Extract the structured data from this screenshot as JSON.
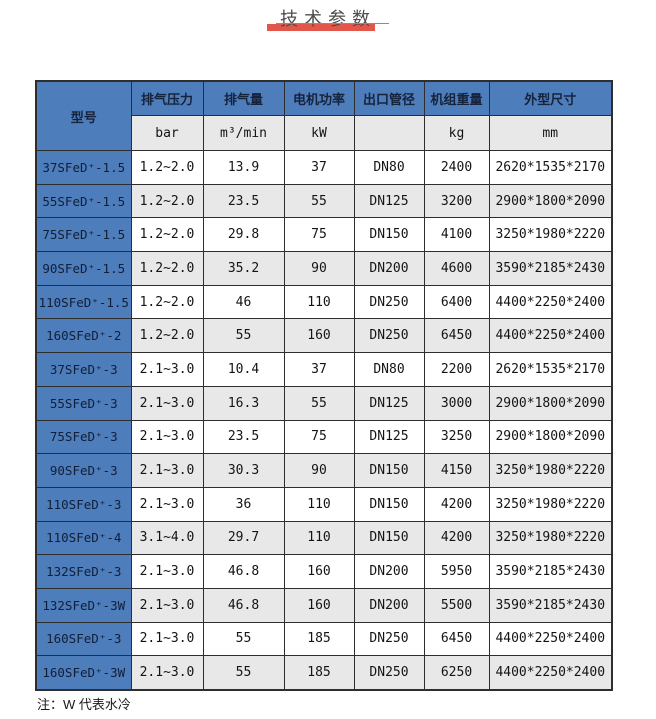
{
  "page": {
    "title": "技术参数",
    "note": "注：W 代表水冷"
  },
  "colors": {
    "header_blue": "#4e7dbb",
    "stripe_gray": "#e8e8e8",
    "title_red": "#e25749",
    "border": "#2e2e2e"
  },
  "table": {
    "columns": [
      {
        "key": "model",
        "label": "型号",
        "unit": ""
      },
      {
        "key": "exhaust-pressure",
        "label": "排气压力",
        "unit": "bar"
      },
      {
        "key": "exhaust-volume",
        "label": "排气量",
        "unit": "m³/min"
      },
      {
        "key": "motor-power",
        "label": "电机功率",
        "unit": "kW"
      },
      {
        "key": "outlet-diameter",
        "label": "出口管径",
        "unit": ""
      },
      {
        "key": "unit-weight",
        "label": "机组重量",
        "unit": "kg"
      },
      {
        "key": "dimensions",
        "label": "外型尺寸",
        "unit": "mm"
      }
    ],
    "rows": [
      [
        "37SFeD⁺-1.5",
        "1.2~2.0",
        "13.9",
        "37",
        "DN80",
        "2400",
        "2620*1535*2170"
      ],
      [
        "55SFeD⁺-1.5",
        "1.2~2.0",
        "23.5",
        "55",
        "DN125",
        "3200",
        "2900*1800*2090"
      ],
      [
        "75SFeD⁺-1.5",
        "1.2~2.0",
        "29.8",
        "75",
        "DN150",
        "4100",
        "3250*1980*2220"
      ],
      [
        "90SFeD⁺-1.5",
        "1.2~2.0",
        "35.2",
        "90",
        "DN200",
        "4600",
        "3590*2185*2430"
      ],
      [
        "110SFeD⁺-1.5",
        "1.2~2.0",
        "46",
        "110",
        "DN250",
        "6400",
        "4400*2250*2400"
      ],
      [
        "160SFeD⁺-2",
        "1.2~2.0",
        "55",
        "160",
        "DN250",
        "6450",
        "4400*2250*2400"
      ],
      [
        "37SFeD⁺-3",
        "2.1~3.0",
        "10.4",
        "37",
        "DN80",
        "2200",
        "2620*1535*2170"
      ],
      [
        "55SFeD⁺-3",
        "2.1~3.0",
        "16.3",
        "55",
        "DN125",
        "3000",
        "2900*1800*2090"
      ],
      [
        "75SFeD⁺-3",
        "2.1~3.0",
        "23.5",
        "75",
        "DN125",
        "3250",
        "2900*1800*2090"
      ],
      [
        "90SFeD⁺-3",
        "2.1~3.0",
        "30.3",
        "90",
        "DN150",
        "4150",
        "3250*1980*2220"
      ],
      [
        "110SFeD⁺-3",
        "2.1~3.0",
        "36",
        "110",
        "DN150",
        "4200",
        "3250*1980*2220"
      ],
      [
        "110SFeD⁺-4",
        "3.1~4.0",
        "29.7",
        "110",
        "DN150",
        "4200",
        "3250*1980*2220"
      ],
      [
        "132SFeD⁺-3",
        "2.1~3.0",
        "46.8",
        "160",
        "DN200",
        "5950",
        "3590*2185*2430"
      ],
      [
        "132SFeD⁺-3W",
        "2.1~3.0",
        "46.8",
        "160",
        "DN200",
        "5500",
        "3590*2185*2430"
      ],
      [
        "160SFeD⁺-3",
        "2.1~3.0",
        "55",
        "185",
        "DN250",
        "6450",
        "4400*2250*2400"
      ],
      [
        "160SFeD⁺-3W",
        "2.1~3.0",
        "55",
        "185",
        "DN250",
        "6250",
        "4400*2250*2400"
      ]
    ]
  }
}
